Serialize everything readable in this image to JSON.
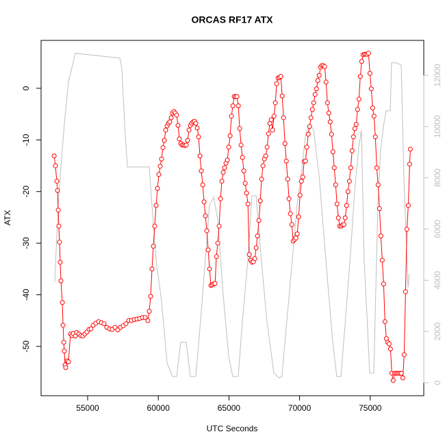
{
  "chart_data": {
    "type": "line",
    "title": "ORCAS RF17 ATX",
    "xlabel": "UTC Seconds",
    "ylabel": "ATX",
    "xlim": [
      51705,
      78789
    ],
    "xticks": [
      55000,
      60000,
      65000,
      70000,
      75000
    ],
    "ylim": [
      -59.55,
      9.28
    ],
    "yticks": [
      -50,
      -40,
      -30,
      -20,
      -10,
      0
    ],
    "y2lim": [
      -508,
      13364
    ],
    "y2ticks": [
      0,
      2000,
      4000,
      6000,
      8000,
      10000,
      12000
    ],
    "y2color": "#bebebe",
    "series": [
      {
        "color": "#ff0000",
        "marker": "circle",
        "x": [
          52630,
          52720,
          52820,
          52870,
          52920,
          52960,
          53010,
          53060,
          53110,
          53210,
          53260,
          53310,
          53350,
          53400,
          53450,
          53550,
          53640,
          53790,
          53885,
          53980,
          54130,
          54225,
          54370,
          54515,
          54660,
          54805,
          54950,
          55100,
          55240,
          55390,
          55580,
          55775,
          55970,
          56160,
          56355,
          56550,
          56740,
          56935,
          57130,
          57325,
          57520,
          57710,
          57905,
          58100,
          58295,
          58490,
          58680,
          58875,
          59070,
          59260,
          59360,
          59457,
          59554,
          59651,
          59748,
          59845,
          59942,
          60039,
          60136,
          60233,
          60330,
          60427,
          60524,
          60621,
          60718,
          60815,
          60912,
          61009,
          61106,
          61203,
          61300,
          61397,
          61494,
          61591,
          61688,
          61785,
          61882,
          61979,
          62076,
          62173,
          62270,
          62367,
          62464,
          62561,
          62658,
          62755,
          62852,
          62949,
          63046,
          63143,
          63240,
          63337,
          63434,
          63531,
          63628,
          63725,
          63822,
          63919,
          64016,
          64113,
          64210,
          64307,
          64404,
          64501,
          64598,
          64695,
          64792,
          64889,
          64986,
          65083,
          65180,
          65277,
          65374,
          65471,
          65568,
          65665,
          65762,
          65859,
          65956,
          66053,
          66150,
          66247,
          66344,
          66441,
          66538,
          66635,
          66732,
          66829,
          66926,
          67023,
          67120,
          67217,
          67314,
          67411,
          67508,
          67605,
          67702,
          67799,
          67896,
          67993,
          68090,
          68187,
          68284,
          68381,
          68478,
          68575,
          68672,
          68769,
          68866,
          68963,
          69060,
          69157,
          69254,
          69351,
          69448,
          69545,
          69642,
          69739,
          69836,
          69933,
          70030,
          70127,
          70224,
          70321,
          70418,
          70515,
          70612,
          70709,
          70806,
          70903,
          71000,
          71097,
          71194,
          71291,
          71388,
          71485,
          71582,
          71679,
          71776,
          71873,
          71970,
          72067,
          72164,
          72261,
          72358,
          72455,
          72552,
          72649,
          72746,
          72843,
          72940,
          73037,
          73134,
          73231,
          73328,
          73425,
          73522,
          73619,
          73716,
          73813,
          73910,
          74007,
          74104,
          74201,
          74298,
          74395,
          74492,
          74589,
          74686,
          74783,
          74880,
          74977,
          75074,
          75171,
          75268,
          75365,
          75462,
          75559,
          75656,
          75753,
          75850,
          75947,
          76044,
          76141,
          76238,
          76335,
          76432,
          76529,
          76626,
          76723,
          76820,
          76917,
          77014,
          77111,
          77208,
          77305,
          77402,
          77499,
          77596,
          77693,
          77790,
          77840
        ],
        "values": [
          -13.1,
          -15,
          -18,
          -19.8,
          -23.6,
          -26.7,
          -29.8,
          -33.7,
          -37.3,
          -41.5,
          -45.9,
          -49.2,
          -50.9,
          -53.6,
          -54.1,
          -52.8,
          -53,
          -47.6,
          -47.9,
          -47.5,
          -48,
          -47.3,
          -47.6,
          -47.9,
          -48,
          -47.6,
          -47.2,
          -46.7,
          -46.6,
          -45.9,
          -45.5,
          -45.2,
          -45.4,
          -45.6,
          -46.3,
          -46.6,
          -46.7,
          -46.3,
          -46.8,
          -46.3,
          -46,
          -45.6,
          -45,
          -45,
          -44.8,
          -44.7,
          -44.6,
          -44.4,
          -44.4,
          -45,
          -43.2,
          -40.3,
          -35,
          -30.6,
          -26.7,
          -22.7,
          -19.4,
          -16.7,
          -15.1,
          -13.7,
          -11.5,
          -10.1,
          -8.1,
          -7.3,
          -6.8,
          -6.5,
          -5.7,
          -4.8,
          -4.5,
          -4.8,
          -5.2,
          -7.2,
          -9.8,
          -10.7,
          -11,
          -11,
          -11.1,
          -11,
          -10.1,
          -8.1,
          -7.2,
          -6.8,
          -6.5,
          -6.4,
          -6.8,
          -7.7,
          -9.4,
          -13.1,
          -16,
          -18.7,
          -22,
          -24.7,
          -27.6,
          -31.3,
          -35,
          -38.2,
          -38.1,
          -37.9,
          -37.8,
          -32.6,
          -30,
          -26.7,
          -21.4,
          -18,
          -16.3,
          -15.4,
          -14.5,
          -13.9,
          -11.4,
          -9.2,
          -5.4,
          -3.4,
          -1.6,
          -1.6,
          -1.6,
          -3.4,
          -7.8,
          -11,
          -13.4,
          -16,
          -18.4,
          -20.3,
          -22.4,
          -32.2,
          -33.3,
          -33.7,
          -33.6,
          -33,
          -30.9,
          -28.6,
          -25.6,
          -21.8,
          -17.6,
          -15,
          -13.7,
          -13.1,
          -11.4,
          -8.8,
          -6.8,
          -6.1,
          -8.1,
          -5.4,
          -2.8,
          0.9,
          2,
          2.1,
          2.3,
          -1.5,
          -5.7,
          -10.7,
          -14.1,
          -17.6,
          -21.4,
          -24.3,
          -26.4,
          -29.6,
          -29.3,
          -29,
          -28.2,
          -24.9,
          -20.7,
          -18,
          -17.2,
          -14.2,
          -14.1,
          -11.4,
          -8.9,
          -7.4,
          -5.7,
          -4.1,
          -2.8,
          -1.2,
          -0.1,
          1.5,
          2.5,
          4.1,
          4.4,
          4.4,
          4.2,
          1.2,
          -2.8,
          -4.8,
          -6.5,
          -8.9,
          -12.3,
          -15.4,
          -18.7,
          -22.4,
          -25.1,
          -26.7,
          -26.7,
          -26.5,
          -26.4,
          -25.1,
          -22.7,
          -20,
          -18,
          -15.4,
          -12.1,
          -9.4,
          -7.8,
          -7,
          -4.1,
          -2.1,
          2.3,
          5.2,
          6.5,
          6.6,
          6.6,
          6.6,
          6.8,
          2.9,
          -0.1,
          -3.8,
          -5.4,
          -9.4,
          -15.4,
          -18.7,
          -23.3,
          -28.6,
          -33.3,
          -37.9,
          -45.2,
          -48.5,
          -49.2,
          -49.5,
          -50.5,
          -55.2,
          -56.6,
          -55.2,
          -55.2,
          -55.2,
          -55.2,
          -55.2,
          -55.2,
          -56.1,
          -51.6,
          -39.4,
          -27.3,
          -22.7,
          -14.7,
          -11.8
        ]
      },
      {
        "color": "#bebebe",
        "axis": "y2",
        "x": [
          52674,
          52916,
          53160,
          53400,
          53643,
          54130,
          57277,
          57420,
          57615,
          57810,
          59360,
          59554,
          59845,
          60233,
          60620,
          61008,
          61300,
          61590,
          61980,
          62270,
          62655,
          62945,
          63330,
          63620,
          63915,
          64205,
          64590,
          64980,
          65270,
          65660,
          65950,
          66337,
          66627,
          66920,
          67210,
          67690,
          68180,
          68560,
          68750,
          69050,
          69440,
          69820,
          70115,
          70405,
          70695,
          70988,
          71375,
          71860,
          72345,
          72635,
          72925,
          73216,
          73605,
          73895,
          74185,
          74380,
          74570,
          74766,
          74960,
          75250,
          75540,
          75735,
          75930,
          76120,
          76415,
          76510,
          76800,
          77190,
          77384,
          77674,
          77771
        ],
        "values": [
          3930,
          6925,
          8797,
          10401,
          11738,
          12861,
          12674,
          12273,
          10134,
          8422,
          8422,
          6925,
          4786,
          3182,
          775,
          241,
          241,
          1578,
          1578,
          241,
          241,
          2112,
          4786,
          6925,
          7246,
          6390,
          3449,
          1043,
          241,
          241,
          2380,
          4786,
          7300,
          7300,
          5321,
          2380,
          374,
          187,
          241,
          2112,
          4519,
          6925,
          8128,
          9599,
          10080,
          9866,
          8128,
          4786,
          1578,
          241,
          241,
          2246,
          5053,
          7460,
          9198,
          9866,
          4786,
          2647,
          374,
          374,
          6925,
          9064,
          10000,
          10615,
          10615,
          12487,
          12487,
          12406,
          7995,
          3717,
          4251
        ]
      }
    ]
  }
}
